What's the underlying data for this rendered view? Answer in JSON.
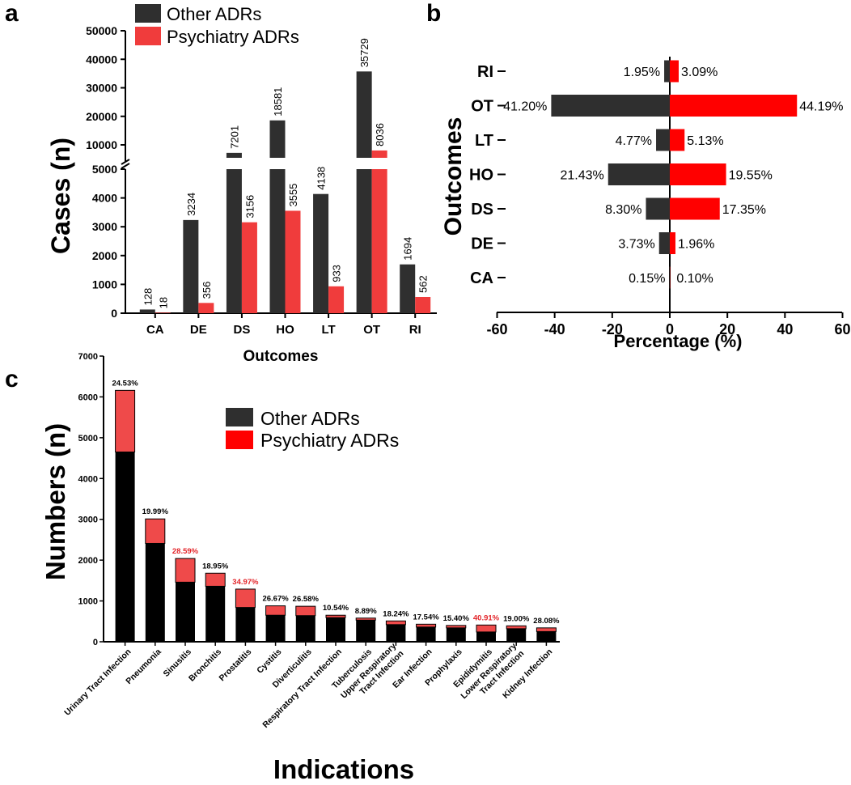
{
  "panel_labels": {
    "a": "a",
    "b": "b",
    "c": "c"
  },
  "colors": {
    "other": "#2f2f2f",
    "psych": "#f03c3c",
    "psych_c": "#ef4a4a",
    "other_c": "#000000",
    "red_text": "#e3262b",
    "bright_red": "#ff0000"
  },
  "chart_data": [
    {
      "id": "a",
      "type": "bar",
      "title": "",
      "xlabel": "Outcomes",
      "ylabel": "Cases (n)",
      "categories": [
        "CA",
        "DE",
        "DS",
        "HO",
        "LT",
        "OT",
        "RI"
      ],
      "series": [
        {
          "name": "Other ADRs",
          "values": [
            128,
            3234,
            7201,
            18581,
            4138,
            35729,
            1694
          ]
        },
        {
          "name": "Psychiatry ADRs",
          "values": [
            18,
            356,
            3156,
            3555,
            933,
            8036,
            562
          ]
        }
      ],
      "y_ticks_lower": [
        "0",
        "1000",
        "2000",
        "3000",
        "4000",
        "5000"
      ],
      "y_ticks_upper": [
        "10000",
        "20000",
        "30000",
        "40000",
        "50000"
      ],
      "ylim_lower": [
        0,
        5000
      ],
      "ylim_upper": [
        5000,
        52000
      ],
      "axis_break": true,
      "legend": [
        "Other ADRs",
        "Psychiatry ADRs"
      ],
      "legend_position": "top"
    },
    {
      "id": "b",
      "type": "bar",
      "orientation": "horizontal-diverging",
      "xlabel": "Percentage (%)",
      "ylabel": "Outcomes",
      "categories": [
        "RI",
        "OT",
        "LT",
        "HO",
        "DS",
        "DE",
        "CA"
      ],
      "series": [
        {
          "name": "Other ADRs",
          "values": [
            1.95,
            41.2,
            4.77,
            21.43,
            8.3,
            3.73,
            0.15
          ],
          "labels": [
            "1.95%",
            "41.20%",
            "4.77%",
            "21.43%",
            "8.30%",
            "3.73%",
            "0.15%"
          ]
        },
        {
          "name": "Psychiatry ADRs",
          "values": [
            3.09,
            44.19,
            5.13,
            19.55,
            17.35,
            1.96,
            0.1
          ],
          "labels": [
            "3.09%",
            "44.19%",
            "5.13%",
            "19.55%",
            "17.35%",
            "1.96%",
            "0.10%"
          ]
        }
      ],
      "x_ticks": [
        "-60",
        "-40",
        "-20",
        "0",
        "20",
        "40",
        "60"
      ],
      "xlim": [
        -60,
        60
      ]
    },
    {
      "id": "c",
      "type": "bar",
      "stacked": true,
      "xlabel": "Indications",
      "ylabel": "Numbers (n)",
      "categories": [
        "Urinary Tract Infection",
        "Pneumonia",
        "Sinusitis",
        "Bronchitis",
        "Prostatitis",
        "Cystitis",
        "Diverticulitis",
        "Respiratory Tract Infection",
        "Tuberculosis",
        "Upper Respiratory\nTract Infection",
        "Ear Infection",
        "Prophylaxis",
        "Epididymitis",
        "Lower Respiratory\nTract Infection",
        "Kidney Infection"
      ],
      "series": [
        {
          "name": "Other ADRs",
          "values": [
            4650,
            2410,
            1460,
            1360,
            840,
            650,
            640,
            590,
            530,
            420,
            360,
            340,
            240,
            320,
            250
          ]
        },
        {
          "name": "Psychiatry ADRs",
          "values": [
            1510,
            600,
            580,
            320,
            450,
            230,
            230,
            60,
            50,
            90,
            70,
            60,
            170,
            70,
            90
          ]
        }
      ],
      "pct_labels": [
        "24.53%",
        "19.99%",
        "28.59%",
        "18.95%",
        "34.97%",
        "26.67%",
        "26.58%",
        "10.54%",
        "8.89%",
        "18.24%",
        "17.54%",
        "15.40%",
        "40.91%",
        "19.00%",
        "28.08%"
      ],
      "pct_highlight": [
        false,
        false,
        true,
        false,
        true,
        false,
        false,
        false,
        false,
        false,
        false,
        false,
        true,
        false,
        false
      ],
      "y_ticks": [
        "0",
        "1000",
        "2000",
        "3000",
        "4000",
        "5000",
        "6000",
        "7000"
      ],
      "ylim": [
        0,
        7000
      ],
      "legend": [
        "Other ADRs",
        "Psychiatry ADRs"
      ],
      "legend_position": "top-right"
    }
  ]
}
